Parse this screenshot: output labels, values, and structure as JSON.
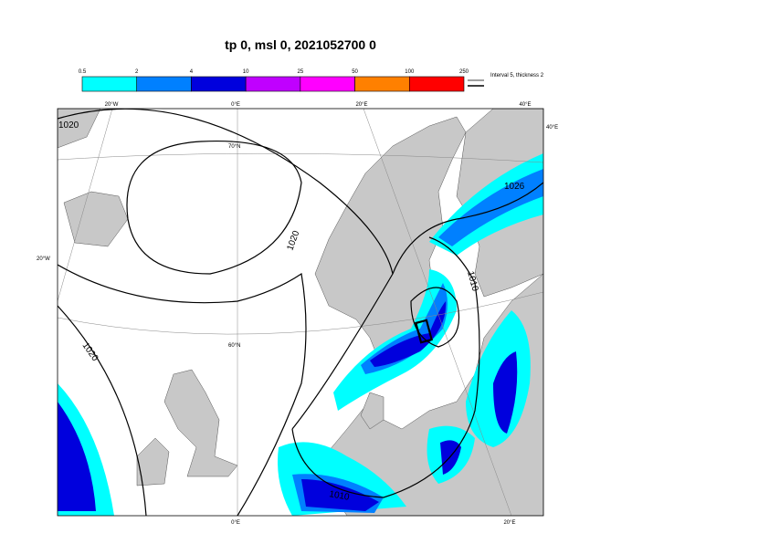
{
  "title": "tp 0, msl 0, 2021052700 0",
  "colorbar": {
    "labels": [
      "0.5",
      "2",
      "4",
      "10",
      "25",
      "50",
      "100",
      "250"
    ],
    "colors": [
      "#00ffff",
      "#0080ff",
      "#0000dd",
      "#c000ff",
      "#ff00ff",
      "#ff8000",
      "#ff0000"
    ]
  },
  "legend": "Interval 5, thickness 2",
  "graticule_labels": [
    "20°W",
    "0°E",
    "20°E",
    "40°E",
    "40°E",
    "20°W",
    "70°N",
    "60°N",
    "0°E",
    "20°E"
  ],
  "isobar_labels": [
    "1020",
    "1026",
    "1020",
    "1010",
    "1020",
    "1010"
  ]
}
